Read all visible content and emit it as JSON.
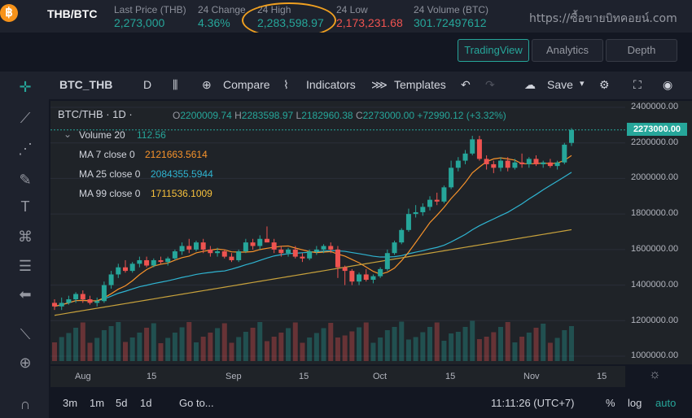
{
  "header": {
    "coin_symbol": "฿",
    "pair": "THB/BTC",
    "stats": [
      {
        "label": "Last Price (THB)",
        "value": "2,273,000",
        "tone": "green"
      },
      {
        "label": "24 Change",
        "value": "4.36%",
        "tone": "green"
      },
      {
        "label": "24 High",
        "value": "2,283,598.97",
        "tone": "green"
      },
      {
        "label": "24 Low",
        "value": "2,173,231.68",
        "tone": "red"
      },
      {
        "label": "24 Volume (BTC)",
        "value": "301.72497612",
        "tone": "green"
      }
    ],
    "watermark": "https://ซื้อขายบิทคอยน์.com"
  },
  "views": {
    "tradingview": "TradingView",
    "analytics": "Analytics",
    "depth": "Depth"
  },
  "toolbar": {
    "symbol": "BTC_THB",
    "interval": "D",
    "compare": "Compare",
    "indicators": "Indicators",
    "templates": "Templates",
    "save": "Save"
  },
  "legend": {
    "title": "BTC/THB · 1D ·",
    "o_label": "O",
    "o": "2200009.74",
    "h_label": "H",
    "h": "2283598.97",
    "l_label": "L",
    "l": "2182960.38",
    "c_label": "C",
    "c": "2273000.00",
    "change": "+72990.12 (+3.32%)",
    "volume_label": "Volume 20",
    "volume": "112.56",
    "ma7_label": "MA 7 close 0",
    "ma7": "2121663.5614",
    "ma25_label": "MA 25 close 0",
    "ma25": "2084355.5944",
    "ma99_label": "MA 99 close 0",
    "ma99": "1711536.1009"
  },
  "colors": {
    "up": "#26a69a",
    "down": "#ef5350",
    "ma7": "#f7932b",
    "ma25": "#2fb4d1",
    "ma99": "#c8a23c"
  },
  "price_axis": {
    "ticks": [
      "2400000.00",
      "2200000.00",
      "2000000.00",
      "1800000.00",
      "1600000.00",
      "1400000.00",
      "1200000.00",
      "1000000.00"
    ],
    "current": "2273000.00"
  },
  "time_axis": {
    "ticks": [
      "Aug",
      "15",
      "Sep",
      "15",
      "Oct",
      "15",
      "Nov",
      "15"
    ]
  },
  "bottom": {
    "ranges": [
      "3m",
      "1m",
      "5d",
      "1d"
    ],
    "goto": "Go to...",
    "clock": "11:11:26 (UTC+7)",
    "pct": "%",
    "log": "log",
    "auto": "auto"
  },
  "chart_data": {
    "type": "candlestick",
    "ylim": [
      1000000,
      2400000
    ],
    "current_price": 2273000,
    "x_ticks": [
      "Aug",
      "15",
      "Sep",
      "15",
      "Oct",
      "15",
      "Nov",
      "15"
    ],
    "candles": [
      [
        1300000,
        1320000,
        1260000,
        1280000
      ],
      [
        1280000,
        1330000,
        1260000,
        1300000
      ],
      [
        1300000,
        1340000,
        1290000,
        1320000
      ],
      [
        1320000,
        1360000,
        1300000,
        1350000
      ],
      [
        1350000,
        1370000,
        1300000,
        1320000
      ],
      [
        1320000,
        1340000,
        1290000,
        1300000
      ],
      [
        1300000,
        1330000,
        1280000,
        1310000
      ],
      [
        1310000,
        1420000,
        1300000,
        1400000
      ],
      [
        1400000,
        1480000,
        1380000,
        1460000
      ],
      [
        1460000,
        1520000,
        1440000,
        1500000
      ],
      [
        1500000,
        1540000,
        1470000,
        1480000
      ],
      [
        1480000,
        1530000,
        1470000,
        1520000
      ],
      [
        1520000,
        1560000,
        1500000,
        1540000
      ],
      [
        1540000,
        1560000,
        1500000,
        1510000
      ],
      [
        1510000,
        1550000,
        1500000,
        1540000
      ],
      [
        1540000,
        1560000,
        1520000,
        1530000
      ],
      [
        1530000,
        1560000,
        1510000,
        1550000
      ],
      [
        1550000,
        1600000,
        1540000,
        1590000
      ],
      [
        1590000,
        1640000,
        1570000,
        1620000
      ],
      [
        1620000,
        1660000,
        1580000,
        1600000
      ],
      [
        1600000,
        1650000,
        1590000,
        1640000
      ],
      [
        1640000,
        1660000,
        1580000,
        1600000
      ],
      [
        1600000,
        1620000,
        1560000,
        1580000
      ],
      [
        1580000,
        1610000,
        1560000,
        1590000
      ],
      [
        1590000,
        1600000,
        1550000,
        1560000
      ],
      [
        1560000,
        1580000,
        1530000,
        1540000
      ],
      [
        1540000,
        1600000,
        1530000,
        1590000
      ],
      [
        1590000,
        1660000,
        1580000,
        1640000
      ],
      [
        1640000,
        1660000,
        1600000,
        1620000
      ],
      [
        1620000,
        1680000,
        1600000,
        1660000
      ],
      [
        1660000,
        1730000,
        1640000,
        1640000
      ],
      [
        1640000,
        1660000,
        1580000,
        1600000
      ],
      [
        1600000,
        1620000,
        1560000,
        1580000
      ],
      [
        1580000,
        1610000,
        1560000,
        1600000
      ],
      [
        1600000,
        1620000,
        1550000,
        1560000
      ],
      [
        1560000,
        1580000,
        1530000,
        1550000
      ],
      [
        1550000,
        1600000,
        1540000,
        1590000
      ],
      [
        1590000,
        1620000,
        1570000,
        1600000
      ],
      [
        1600000,
        1630000,
        1580000,
        1620000
      ],
      [
        1620000,
        1640000,
        1580000,
        1600000
      ],
      [
        1600000,
        1620000,
        1440000,
        1500000
      ],
      [
        1500000,
        1510000,
        1400000,
        1480000
      ],
      [
        1480000,
        1490000,
        1400000,
        1420000
      ],
      [
        1420000,
        1470000,
        1400000,
        1460000
      ],
      [
        1460000,
        1490000,
        1420000,
        1430000
      ],
      [
        1430000,
        1460000,
        1410000,
        1450000
      ],
      [
        1450000,
        1500000,
        1440000,
        1490000
      ],
      [
        1490000,
        1600000,
        1480000,
        1580000
      ],
      [
        1580000,
        1650000,
        1570000,
        1640000
      ],
      [
        1640000,
        1720000,
        1630000,
        1710000
      ],
      [
        1710000,
        1830000,
        1700000,
        1800000
      ],
      [
        1800000,
        1850000,
        1780000,
        1810000
      ],
      [
        1810000,
        1860000,
        1790000,
        1840000
      ],
      [
        1840000,
        1900000,
        1820000,
        1880000
      ],
      [
        1880000,
        1920000,
        1850000,
        1870000
      ],
      [
        1870000,
        1960000,
        1860000,
        1950000
      ],
      [
        1950000,
        2100000,
        1940000,
        2060000
      ],
      [
        2060000,
        2120000,
        2040000,
        2100000
      ],
      [
        2100000,
        2160000,
        2080000,
        2140000
      ],
      [
        2140000,
        2240000,
        2130000,
        2220000
      ],
      [
        2220000,
        2240000,
        2100000,
        2110000
      ],
      [
        2110000,
        2130000,
        2050000,
        2080000
      ],
      [
        2080000,
        2100000,
        2030000,
        2060000
      ],
      [
        2060000,
        2120000,
        2040000,
        2100000
      ],
      [
        2100000,
        2120000,
        2040000,
        2060000
      ],
      [
        2060000,
        2110000,
        2050000,
        2090000
      ],
      [
        2090000,
        2140000,
        2060000,
        2080000
      ],
      [
        2080000,
        2120000,
        2060000,
        2110000
      ],
      [
        2110000,
        2130000,
        2070000,
        2080000
      ],
      [
        2080000,
        2100000,
        2060000,
        2090000
      ],
      [
        2090000,
        2110000,
        2060000,
        2070000
      ],
      [
        2070000,
        2100000,
        2050000,
        2090000
      ],
      [
        2090000,
        2200000,
        2080000,
        2190000
      ],
      [
        2200010,
        2283599,
        2182960,
        2273000
      ]
    ]
  }
}
